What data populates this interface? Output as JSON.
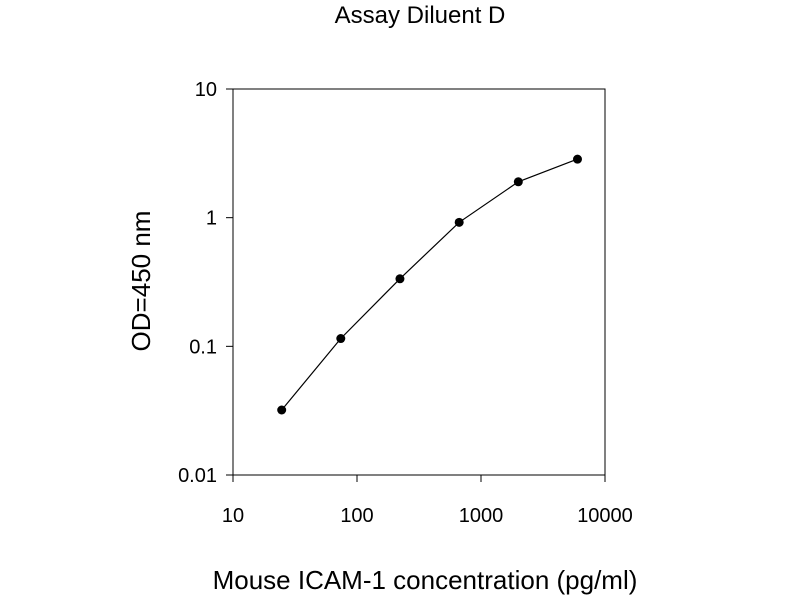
{
  "chart_data": {
    "type": "line",
    "title": "Assay Diluent D",
    "xlabel": "Mouse ICAM-1  concentration (pg/ml)",
    "ylabel": "OD=450 nm",
    "xscale": "log",
    "yscale": "log",
    "xlim": [
      10,
      10000
    ],
    "ylim": [
      0.01,
      10
    ],
    "x_ticks": [
      "10",
      "100",
      "1000",
      "10000"
    ],
    "y_ticks": [
      "0.01",
      "0.1",
      "1",
      "10"
    ],
    "grid": false,
    "legend": "none",
    "series": [
      {
        "x": [
          24.7,
          74,
          222,
          667,
          2000,
          6000
        ],
        "y": [
          0.032,
          0.115,
          0.335,
          0.92,
          1.9,
          2.85
        ],
        "color": "#000000",
        "marker": "circle"
      }
    ]
  }
}
